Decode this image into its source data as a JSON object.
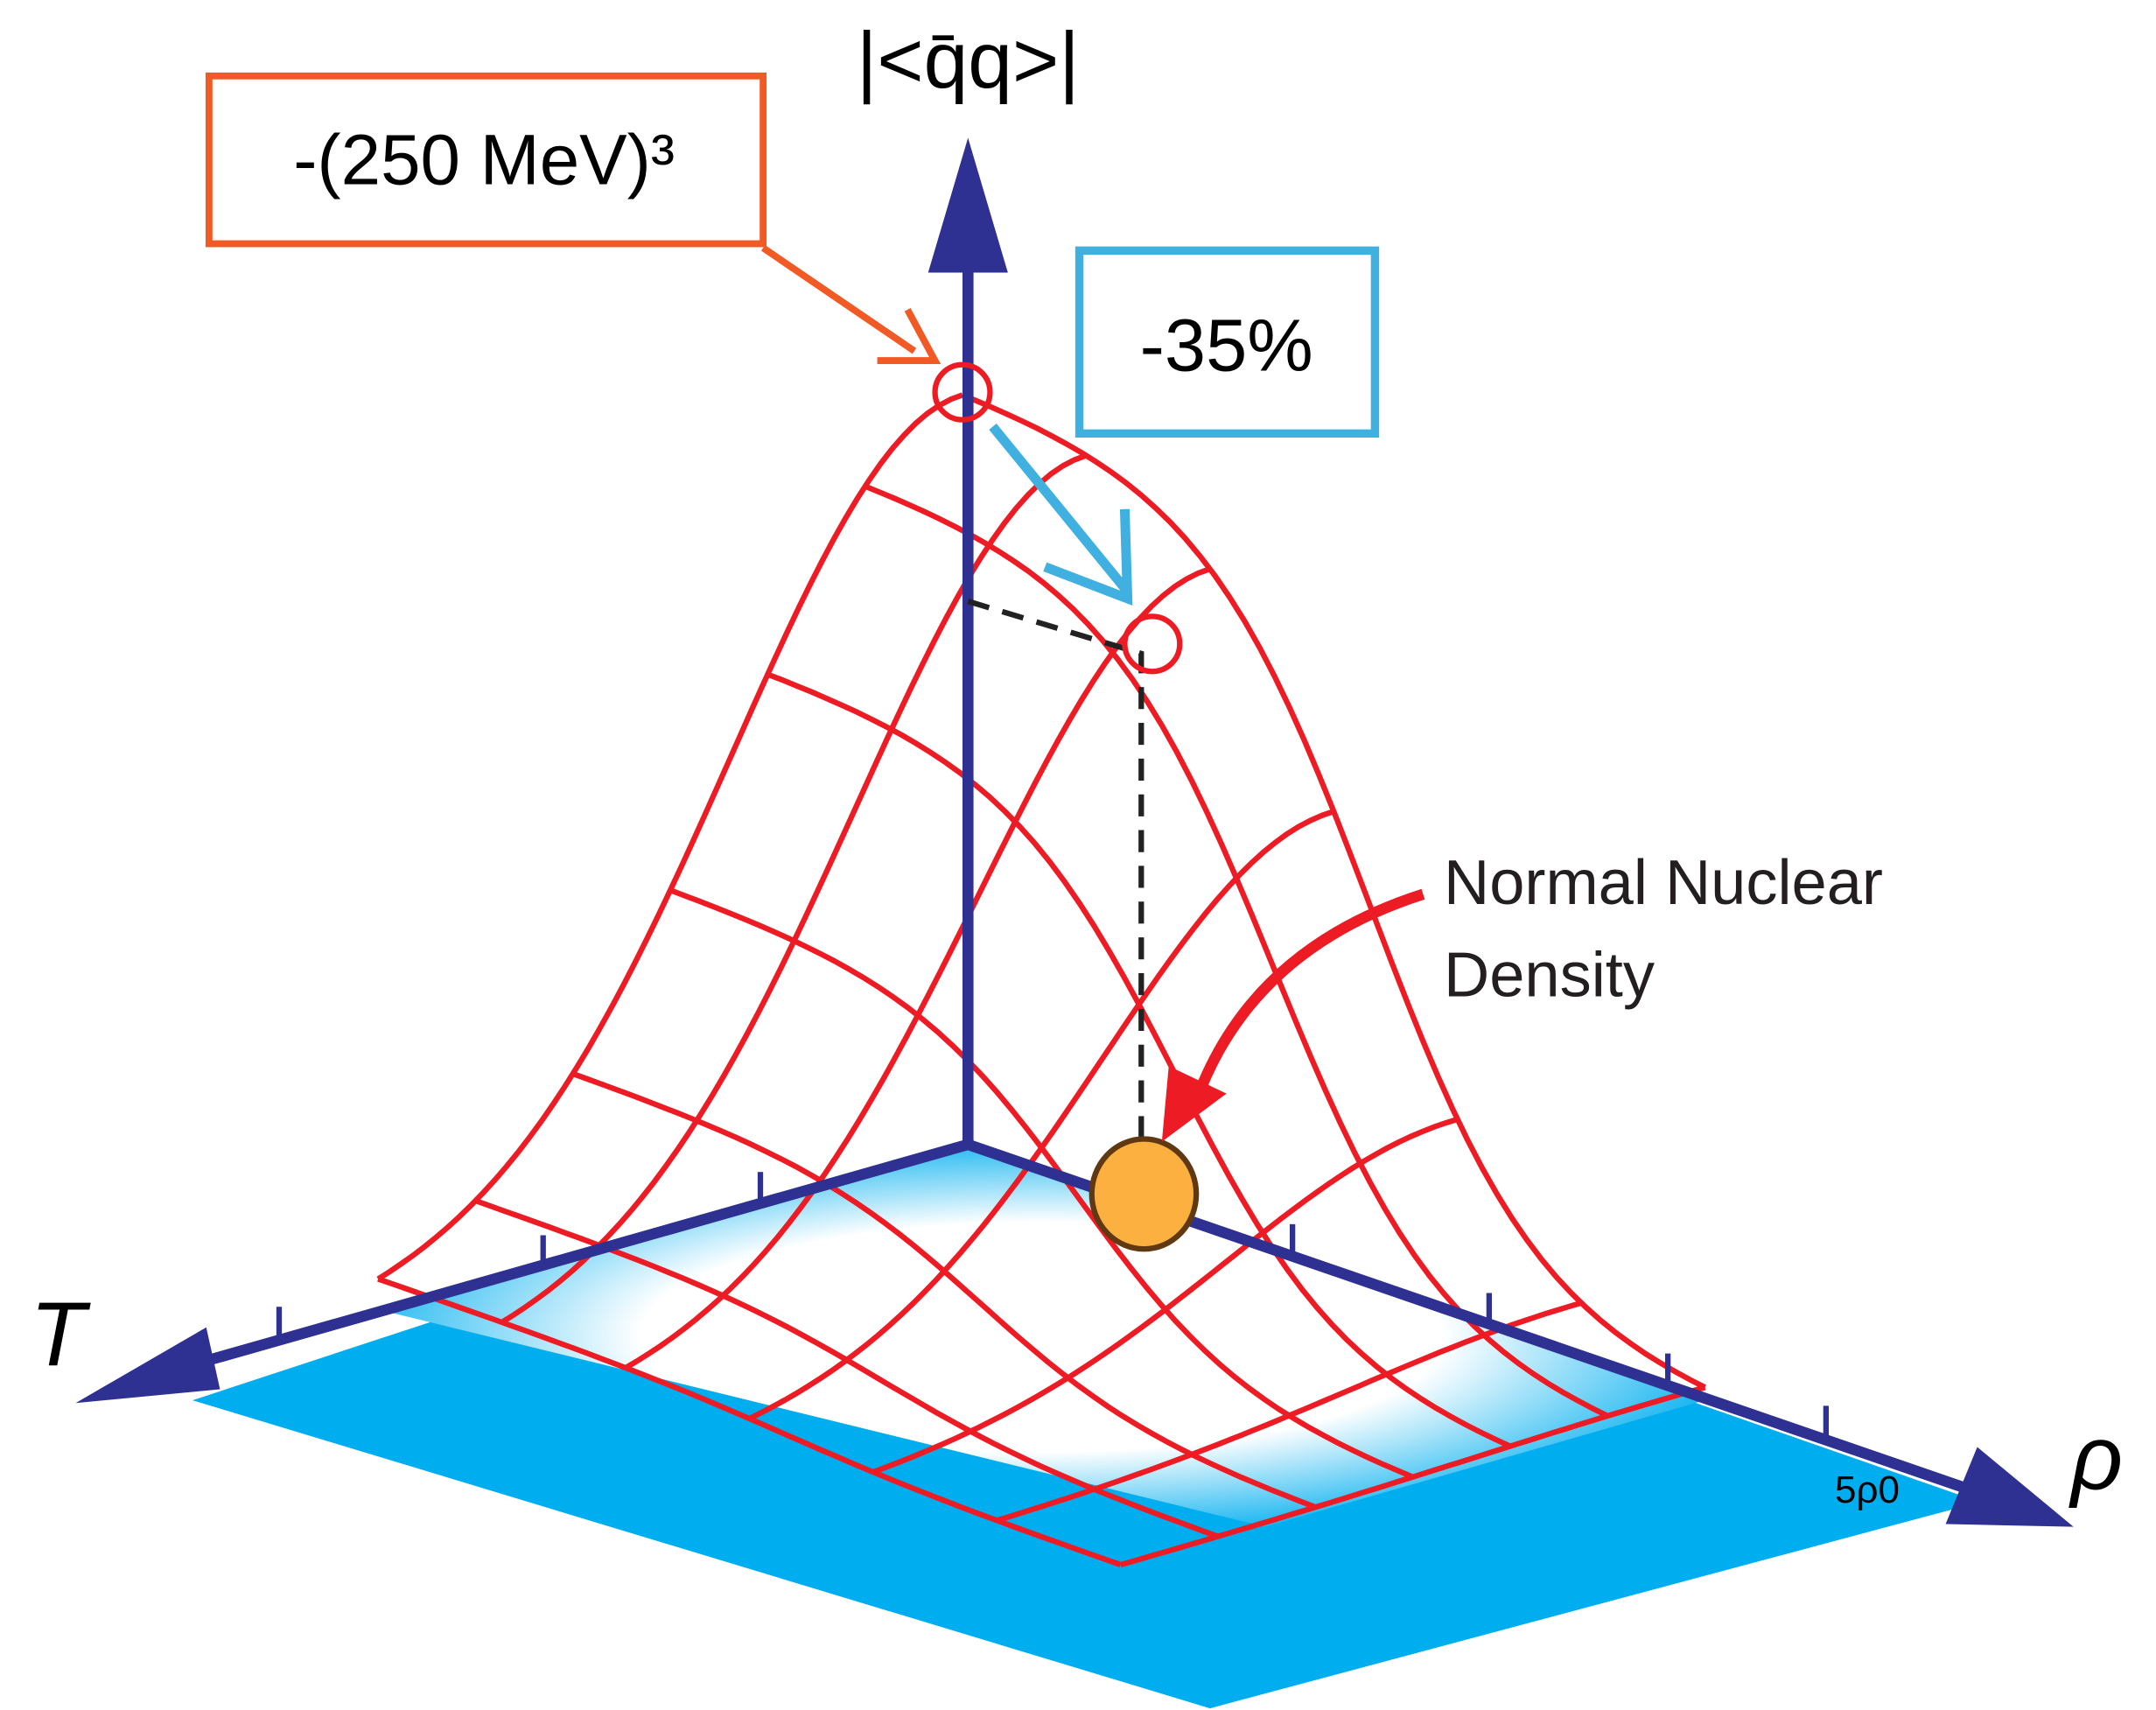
{
  "axes": {
    "vertical": "|<q̄q>|",
    "temperature": "T",
    "density": "ρ",
    "density_tick": "5ρ0"
  },
  "annotations": {
    "vacuum_value": "-(250 MeV)³",
    "reduction": "-35%",
    "normal_density": [
      "Normal Nuclear",
      "Density"
    ]
  }
}
